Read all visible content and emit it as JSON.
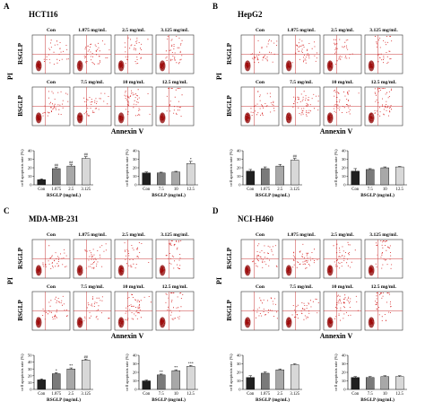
{
  "figure": {
    "panel_letters": [
      "A",
      "B",
      "C",
      "D"
    ],
    "cell_lines": [
      "HCT116",
      "HepG2",
      "MDA-MB-231",
      "NCI-H460"
    ],
    "row_labels": [
      "RSGLP",
      "BSGLP"
    ],
    "flow_x_label": "Annexin V",
    "flow_y_label": "PI",
    "rsglp_concs": [
      "Con",
      "1.875 mg/mL",
      "2.5 mg/mL",
      "3.125 mg/mL"
    ],
    "bsglp_concs": [
      "Con",
      "7.5 mg/mL",
      "10 mg/mL",
      "12.5 mg/mL"
    ],
    "bar_ylabel": "cell apoptosis rate (%)",
    "bar_xlabel_rsglp": "RSGLP (mg/mL)",
    "bar_xlabel_bsglp": "BSGLP (mg/mL)",
    "colors": {
      "dots": "#d62020",
      "gate": "#c83a3a",
      "box": "#333333",
      "dense": "#8c0000"
    }
  },
  "chart_data": [
    {
      "type": "bar",
      "panel": "A",
      "categories": [
        "Con",
        "1.875",
        "2.5",
        "3.125"
      ],
      "values": [
        6,
        19,
        22,
        31
      ],
      "errors": [
        1,
        1.5,
        1.5,
        2
      ],
      "sig": [
        "",
        "##",
        "##",
        "##"
      ],
      "ylim": [
        0,
        40
      ],
      "yticks": [
        0,
        10,
        20,
        30,
        40
      ],
      "xlabel": "RSGLP (mg/mL)",
      "ylabel": "cell apoptosis rate (%)"
    },
    {
      "type": "bar",
      "panel": "A",
      "categories": [
        "Con",
        "7.5",
        "10",
        "12.5"
      ],
      "values": [
        14,
        14,
        15,
        25
      ],
      "errors": [
        1,
        0.8,
        0.8,
        2.5
      ],
      "sig": [
        "",
        "",
        "",
        "*"
      ],
      "ylim": [
        0,
        40
      ],
      "yticks": [
        0,
        10,
        20,
        30,
        40
      ],
      "xlabel": "BSGLP (mg/mL)",
      "ylabel": "cell apoptosis rate (%)"
    },
    {
      "type": "bar",
      "panel": "B",
      "categories": [
        "Con",
        "1.875",
        "2.5",
        "3.125"
      ],
      "values": [
        16,
        19,
        22,
        29
      ],
      "errors": [
        2,
        2,
        2,
        2
      ],
      "sig": [
        "",
        "",
        "",
        "##"
      ],
      "ylim": [
        0,
        40
      ],
      "yticks": [
        0,
        10,
        20,
        30,
        40
      ],
      "xlabel": "RSGLP (mg/mL)",
      "ylabel": "cell apoptosis rate (%)"
    },
    {
      "type": "bar",
      "panel": "B",
      "categories": [
        "Con",
        "7.5",
        "10",
        "12.5"
      ],
      "values": [
        16,
        18,
        20,
        21
      ],
      "errors": [
        3,
        1,
        1,
        0.5
      ],
      "sig": [
        "",
        "",
        "",
        ""
      ],
      "ylim": [
        0,
        40
      ],
      "yticks": [
        0,
        10,
        20,
        30,
        40
      ],
      "xlabel": "BSGLP (mg/mL)",
      "ylabel": "cell apoptosis rate (%)"
    },
    {
      "type": "bar",
      "panel": "C",
      "categories": [
        "Con",
        "1.875",
        "2.5",
        "3.125"
      ],
      "values": [
        14,
        23,
        30,
        43
      ],
      "errors": [
        1.5,
        1.5,
        1.5,
        1.5
      ],
      "sig": [
        "",
        "*",
        "**",
        "##"
      ],
      "ylim": [
        0,
        50
      ],
      "yticks": [
        0,
        10,
        20,
        30,
        40,
        50
      ],
      "xlabel": "RSGLP (mg/mL)",
      "ylabel": "cell apoptosis rate (%)"
    },
    {
      "type": "bar",
      "panel": "C",
      "categories": [
        "Con",
        "7.5",
        "10",
        "12.5"
      ],
      "values": [
        10,
        17,
        22,
        27
      ],
      "errors": [
        1,
        1,
        1,
        1
      ],
      "sig": [
        "",
        "**",
        "**",
        "***"
      ],
      "ylim": [
        0,
        40
      ],
      "yticks": [
        0,
        10,
        20,
        30,
        40
      ],
      "xlabel": "BSGLP (mg/mL)",
      "ylabel": "cell apoptosis rate (%)"
    },
    {
      "type": "bar",
      "panel": "D",
      "categories": [
        "Con",
        "1.875",
        "2.5",
        "3.125"
      ],
      "values": [
        14,
        19,
        23,
        29
      ],
      "errors": [
        2,
        1.5,
        1,
        1
      ],
      "sig": [
        "",
        "",
        "",
        ""
      ],
      "ylim": [
        0,
        40
      ],
      "yticks": [
        0,
        10,
        20,
        30,
        40
      ],
      "xlabel": "RSGLP (mg/mL)",
      "ylabel": "cell apoptosis rate (%)"
    },
    {
      "type": "bar",
      "panel": "D",
      "categories": [
        "Con",
        "7.5",
        "10",
        "12.5"
      ],
      "values": [
        14,
        14,
        15,
        15
      ],
      "errors": [
        1,
        1,
        1,
        1
      ],
      "sig": [
        "",
        "",
        "",
        ""
      ],
      "ylim": [
        0,
        40
      ],
      "yticks": [
        0,
        10,
        20,
        30,
        40
      ],
      "xlabel": "BSGLP (mg/mL)",
      "ylabel": "cell apoptosis rate (%)"
    }
  ]
}
